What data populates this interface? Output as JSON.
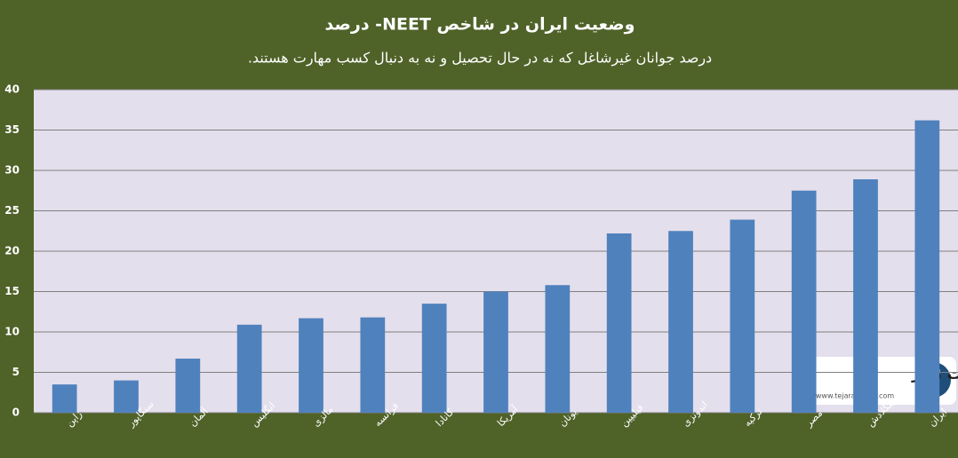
{
  "chart_data": {
    "type": "bar",
    "title": "وضعیت ایران در شاخص NEET- درصد",
    "subtitle": "درصد جوانان غیرشاغل که نه در حال تحصیل و نه به دنبال کسب مهارت هستند.",
    "categories": [
      "ژاپن",
      "سنگاپور",
      "آلمان",
      "انگلیس",
      "مالزی",
      "فرانسه",
      "کانادا",
      "آمریکا",
      "یونان",
      "فیلیپین",
      "اندونزی",
      "ترکیه",
      "مصر",
      "بنگلادش",
      "ایران"
    ],
    "values": [
      3.5,
      4,
      6.7,
      10.9,
      11.7,
      11.8,
      13.5,
      15,
      15.8,
      22.2,
      22.5,
      23.9,
      27.5,
      28.9,
      36.2
    ],
    "color": "#4f81bd",
    "ylim": [
      0,
      40
    ],
    "yticks": [
      0,
      5,
      10,
      15,
      20,
      25,
      30,
      35,
      40
    ],
    "grid": true,
    "annotations": [
      "تجارت نیوز",
      "www.tejaratnews.com"
    ]
  }
}
